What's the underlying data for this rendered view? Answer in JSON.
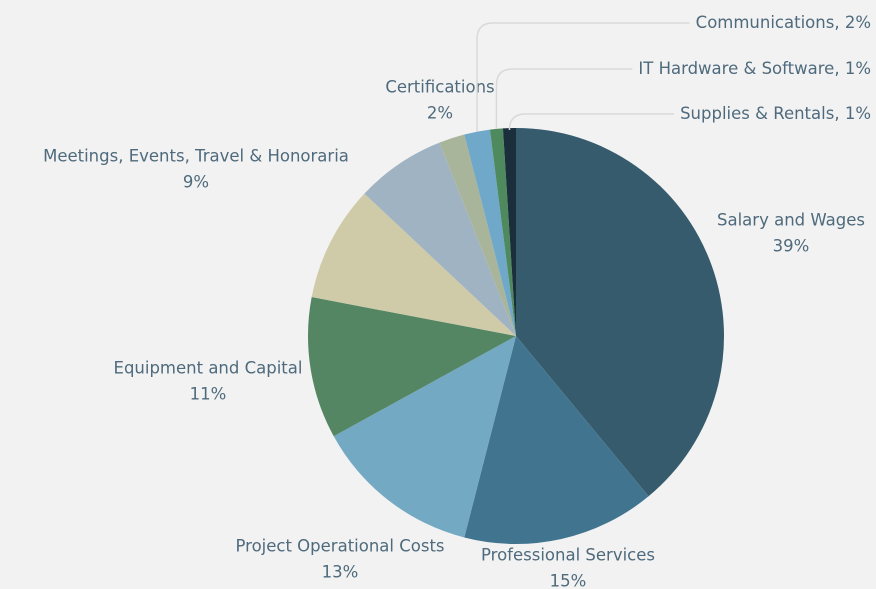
{
  "chart_data": {
    "type": "pie",
    "categories": [
      "Salary and Wages",
      "Professional Services",
      "Project Operational Costs",
      "Equipment and Capital",
      "Meetings, Events, Travel & Honoraria",
      null,
      "Certifications",
      "Communications",
      "IT Hardware & Software",
      "Supplies & Rentals"
    ],
    "values": [
      39,
      15,
      13,
      11,
      9,
      7,
      2,
      2,
      1,
      1
    ],
    "value_labels": [
      "39%",
      "15%",
      "13%",
      "11%",
      "9%",
      null,
      "2%",
      ", 2%",
      ", 1%",
      ", 1%"
    ],
    "colors": [
      "#365b6d",
      "#41758f",
      "#74a9c4",
      "#548664",
      "#cfcba8",
      "#9fb3c2",
      "#a9b59a",
      "#6fa8c8",
      "#4f8a5f",
      "#1a2e3b"
    ]
  }
}
